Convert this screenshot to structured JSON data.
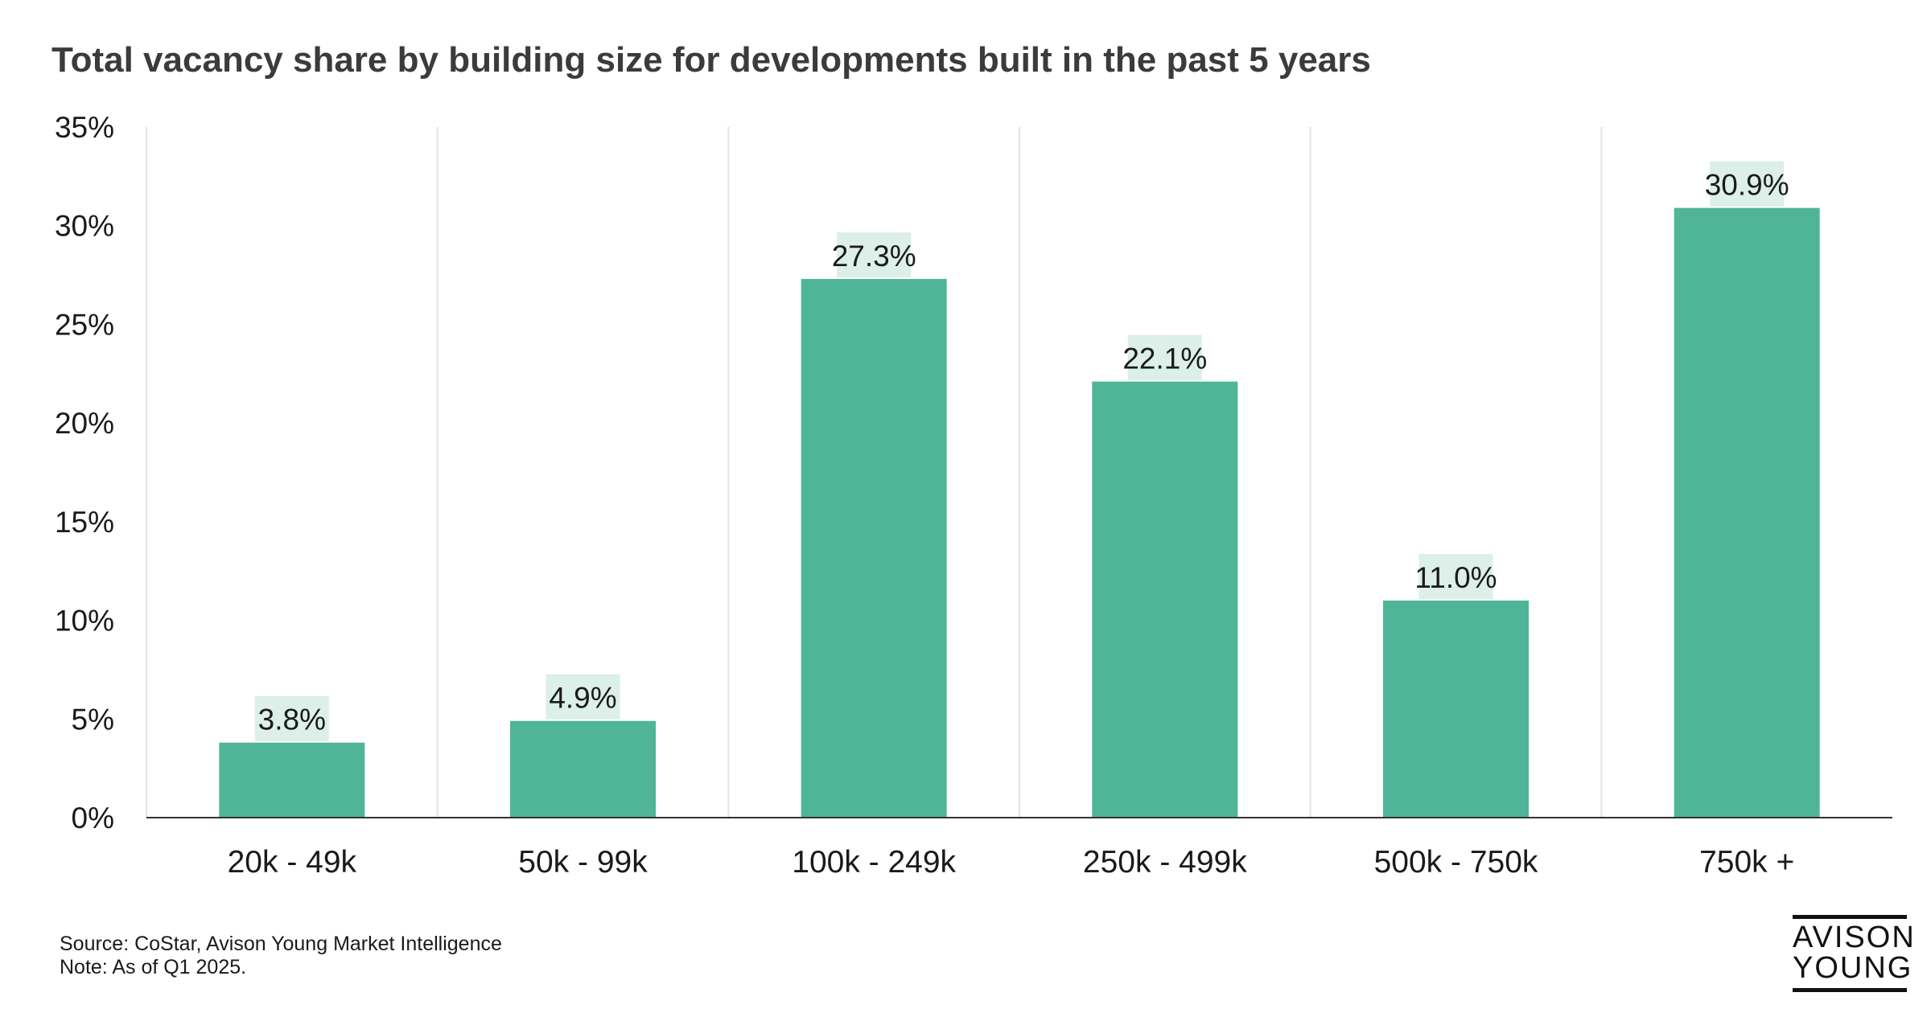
{
  "title": "Total vacancy share by building size for developments built in the past 5 years",
  "footnotes": {
    "source": "Source: CoStar, Avison Young Market Intelligence",
    "note": "Note: As of Q1 2025."
  },
  "logo": {
    "line1": "AVISON",
    "line2": "YOUNG"
  },
  "colors": {
    "bar": "#4fb596",
    "label_bg": "#dcefe8",
    "grid": "#e3e3e3",
    "axis": "#333333",
    "text": "#1a1a1a"
  },
  "chart_data": {
    "type": "bar",
    "title": "Total vacancy share by building size for developments built in the past 5 years",
    "categories": [
      "20k - 49k",
      "50k - 99k",
      "100k - 249k",
      "250k - 499k",
      "500k - 750k",
      "750k +"
    ],
    "values": [
      3.8,
      4.9,
      27.3,
      22.1,
      11.0,
      30.9
    ],
    "value_labels": [
      "3.8%",
      "4.9%",
      "27.3%",
      "22.1%",
      "11.0%",
      "30.9%"
    ],
    "y_ticks": [
      0,
      5,
      10,
      15,
      20,
      25,
      30,
      35
    ],
    "y_tick_labels": [
      "0%",
      "5%",
      "10%",
      "15%",
      "20%",
      "25%",
      "30%",
      "35%"
    ],
    "ylim": [
      0,
      35
    ],
    "xlabel": "",
    "ylabel": "",
    "grid": "vertical separators between categories",
    "legend": "none"
  }
}
